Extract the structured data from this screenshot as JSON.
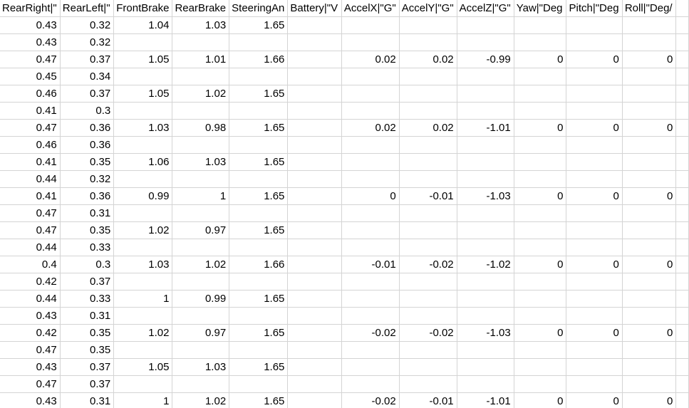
{
  "headers": [
    "RearRight|\"",
    "RearLeft|\"",
    "FrontBrake",
    "RearBrake",
    "SteeringAn",
    "Battery|\"V",
    "AccelX|\"G\"",
    "AccelY|\"G\"",
    "AccelZ|\"G\"",
    "Yaw|\"Deg",
    "Pitch|\"Deg",
    "Roll|\"Deg/",
    ""
  ],
  "rows": [
    [
      "0.43",
      "0.32",
      "1.04",
      "1.03",
      "1.65",
      "",
      "",
      "",
      "",
      "",
      "",
      "",
      ""
    ],
    [
      "0.43",
      "0.32",
      "",
      "",
      "",
      "",
      "",
      "",
      "",
      "",
      "",
      "",
      ""
    ],
    [
      "0.47",
      "0.37",
      "1.05",
      "1.01",
      "1.66",
      "",
      "0.02",
      "0.02",
      "-0.99",
      "0",
      "0",
      "0",
      ""
    ],
    [
      "0.45",
      "0.34",
      "",
      "",
      "",
      "",
      "",
      "",
      "",
      "",
      "",
      "",
      ""
    ],
    [
      "0.46",
      "0.37",
      "1.05",
      "1.02",
      "1.65",
      "",
      "",
      "",
      "",
      "",
      "",
      "",
      ""
    ],
    [
      "0.41",
      "0.3",
      "",
      "",
      "",
      "",
      "",
      "",
      "",
      "",
      "",
      "",
      ""
    ],
    [
      "0.47",
      "0.36",
      "1.03",
      "0.98",
      "1.65",
      "",
      "0.02",
      "0.02",
      "-1.01",
      "0",
      "0",
      "0",
      ""
    ],
    [
      "0.46",
      "0.36",
      "",
      "",
      "",
      "",
      "",
      "",
      "",
      "",
      "",
      "",
      ""
    ],
    [
      "0.41",
      "0.35",
      "1.06",
      "1.03",
      "1.65",
      "",
      "",
      "",
      "",
      "",
      "",
      "",
      ""
    ],
    [
      "0.44",
      "0.32",
      "",
      "",
      "",
      "",
      "",
      "",
      "",
      "",
      "",
      "",
      ""
    ],
    [
      "0.41",
      "0.36",
      "0.99",
      "1",
      "1.65",
      "",
      "0",
      "-0.01",
      "-1.03",
      "0",
      "0",
      "0",
      ""
    ],
    [
      "0.47",
      "0.31",
      "",
      "",
      "",
      "",
      "",
      "",
      "",
      "",
      "",
      "",
      ""
    ],
    [
      "0.47",
      "0.35",
      "1.02",
      "0.97",
      "1.65",
      "",
      "",
      "",
      "",
      "",
      "",
      "",
      ""
    ],
    [
      "0.44",
      "0.33",
      "",
      "",
      "",
      "",
      "",
      "",
      "",
      "",
      "",
      "",
      ""
    ],
    [
      "0.4",
      "0.3",
      "1.03",
      "1.02",
      "1.66",
      "",
      "-0.01",
      "-0.02",
      "-1.02",
      "0",
      "0",
      "0",
      ""
    ],
    [
      "0.42",
      "0.37",
      "",
      "",
      "",
      "",
      "",
      "",
      "",
      "",
      "",
      "",
      ""
    ],
    [
      "0.44",
      "0.33",
      "1",
      "0.99",
      "1.65",
      "",
      "",
      "",
      "",
      "",
      "",
      "",
      ""
    ],
    [
      "0.43",
      "0.31",
      "",
      "",
      "",
      "",
      "",
      "",
      "",
      "",
      "",
      "",
      ""
    ],
    [
      "0.42",
      "0.35",
      "1.02",
      "0.97",
      "1.65",
      "",
      "-0.02",
      "-0.02",
      "-1.03",
      "0",
      "0",
      "0",
      ""
    ],
    [
      "0.47",
      "0.35",
      "",
      "",
      "",
      "",
      "",
      "",
      "",
      "",
      "",
      "",
      ""
    ],
    [
      "0.43",
      "0.37",
      "1.05",
      "1.03",
      "1.65",
      "",
      "",
      "",
      "",
      "",
      "",
      "",
      ""
    ],
    [
      "0.47",
      "0.37",
      "",
      "",
      "",
      "",
      "",
      "",
      "",
      "",
      "",
      "",
      ""
    ],
    [
      "0.43",
      "0.31",
      "1",
      "1.02",
      "1.65",
      "",
      "-0.02",
      "-0.01",
      "-1.01",
      "0",
      "0",
      "0",
      ""
    ]
  ],
  "gridline_color": "#d4d4d4"
}
